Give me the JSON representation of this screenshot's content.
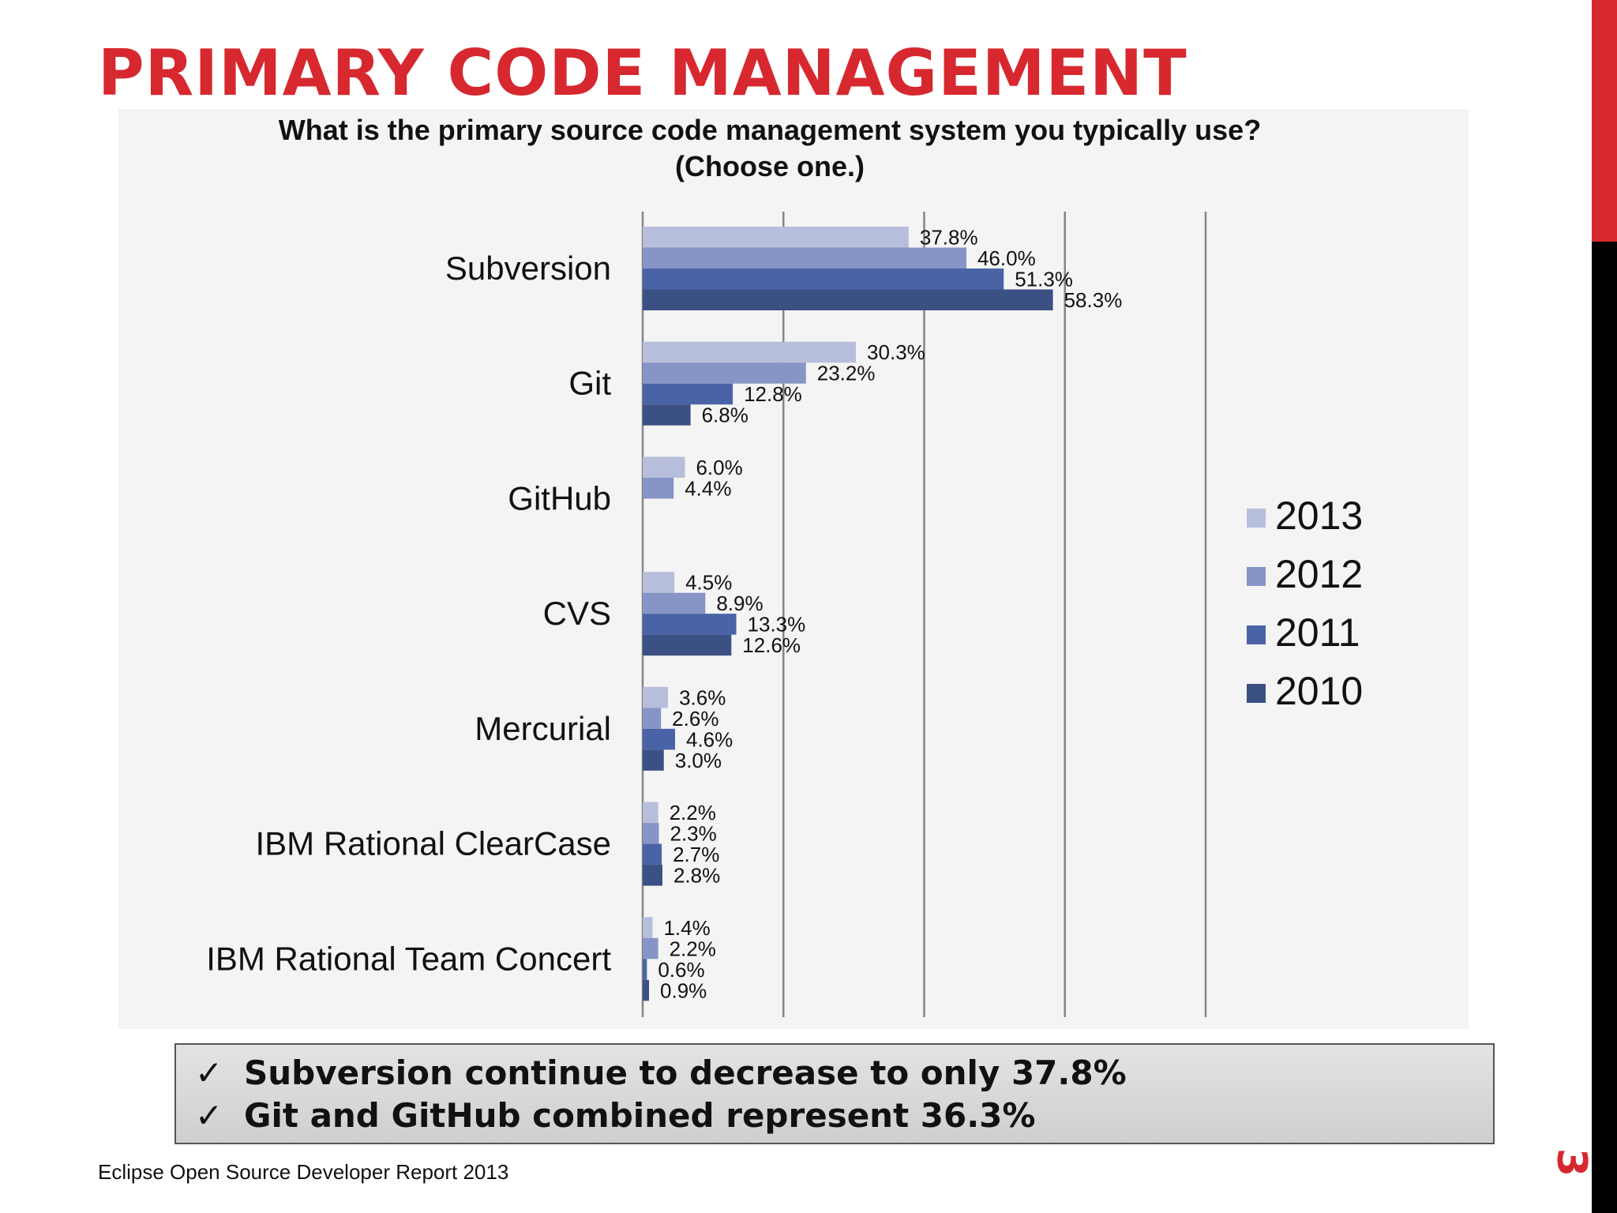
{
  "slide": {
    "title": "PRIMARY CODE MANAGEMENT",
    "title_color": "#d7282f",
    "footer": "Eclipse Open Source Developer Report 2013",
    "page_number": "3",
    "side_bar_colors": [
      "#d7282f",
      "#000000"
    ]
  },
  "callout": {
    "check_glyph": "✓",
    "lines": [
      "Subversion continue to decrease to only 37.8%",
      "Git and GitHub combined represent 36.3%"
    ]
  },
  "chart_data": {
    "type": "bar",
    "orientation": "horizontal",
    "title": "What is the primary source code management system you typically use? (Choose one.)",
    "categories": [
      "Subversion",
      "Git",
      "GitHub",
      "CVS",
      "Mercurial",
      "IBM Rational ClearCase",
      "IBM Rational Team Concert"
    ],
    "series": [
      {
        "name": "2013",
        "color": "#b6bedb",
        "values": [
          37.8,
          30.3,
          6.0,
          4.5,
          3.6,
          2.2,
          1.4
        ],
        "labels": [
          "37.8%",
          "30.3%",
          "6.0%",
          "4.5%",
          "3.6%",
          "2.2%",
          "1.4%"
        ]
      },
      {
        "name": "2012",
        "color": "#8794c6",
        "values": [
          46.0,
          23.2,
          4.4,
          8.9,
          2.6,
          2.3,
          2.2
        ],
        "labels": [
          "46.0%",
          "23.2%",
          "4.4%",
          "8.9%",
          "2.6%",
          "2.3%",
          "2.2%"
        ]
      },
      {
        "name": "2011",
        "color": "#4a63a6",
        "values": [
          51.3,
          12.8,
          null,
          13.3,
          4.6,
          2.7,
          0.6
        ],
        "labels": [
          "51.3%",
          "12.8%",
          null,
          "13.3%",
          "4.6%",
          "2.7%",
          "0.6%"
        ]
      },
      {
        "name": "2010",
        "color": "#3b5083",
        "values": [
          58.3,
          6.8,
          null,
          12.6,
          3.0,
          2.8,
          0.9
        ],
        "labels": [
          "58.3%",
          "6.8%",
          null,
          "12.6%",
          "3.0%",
          "2.8%",
          "0.9%"
        ]
      }
    ],
    "xlim": [
      0,
      80
    ],
    "x_gridline_step": 20,
    "x_tick_labels_shown": false,
    "grid": true,
    "legend_position": "right"
  }
}
